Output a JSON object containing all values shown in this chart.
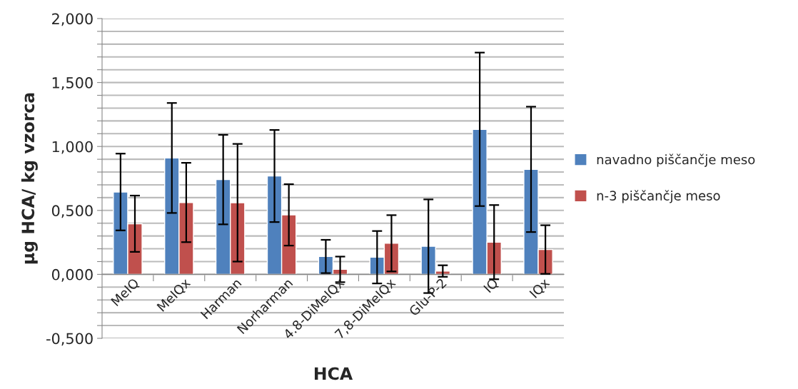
{
  "chart_data": {
    "type": "bar",
    "xlabel": "HCA",
    "ylabel": "µg HCA/ kg vzorca",
    "categories": [
      "MeIQ",
      "MeIQx",
      "Harman",
      "Norharman",
      "4.8-DiMeIQx",
      "7,8-DiMeIQx",
      "Glu-P-2",
      "IQ",
      "IQx"
    ],
    "series": [
      {
        "name": "navadno piščančje meso",
        "color": "#4f81bd",
        "values": [
          0.644,
          0.91,
          0.741,
          0.769,
          0.14,
          0.134,
          0.22,
          1.134,
          0.821
        ],
        "errors": [
          0.3,
          0.43,
          0.35,
          0.36,
          0.13,
          0.205,
          0.366,
          0.6,
          0.49
        ]
      },
      {
        "name": "n-3 piščančje meso",
        "color": "#c0504d",
        "values": [
          0.396,
          0.562,
          0.56,
          0.465,
          0.039,
          0.243,
          0.026,
          0.252,
          0.194
        ],
        "errors": [
          0.22,
          0.31,
          0.46,
          0.24,
          0.1,
          0.22,
          0.045,
          0.29,
          0.19
        ]
      }
    ],
    "ylim": [
      -0.5,
      2.0
    ],
    "yticks": [
      {
        "value": -0.5,
        "label": "-0,500"
      },
      {
        "value": -0.4,
        "label": null
      },
      {
        "value": -0.3,
        "label": null
      },
      {
        "value": -0.2,
        "label": null
      },
      {
        "value": -0.1,
        "label": null
      },
      {
        "value": 0.0,
        "label": "0,000"
      },
      {
        "value": 0.1,
        "label": null
      },
      {
        "value": 0.2,
        "label": null
      },
      {
        "value": 0.3,
        "label": null
      },
      {
        "value": 0.4,
        "label": null
      },
      {
        "value": 0.5,
        "label": "0,500"
      },
      {
        "value": 0.6,
        "label": null
      },
      {
        "value": 0.7,
        "label": null
      },
      {
        "value": 0.8,
        "label": null
      },
      {
        "value": 0.9,
        "label": null
      },
      {
        "value": 1.0,
        "label": "1,000"
      },
      {
        "value": 1.1,
        "label": null
      },
      {
        "value": 1.2,
        "label": null
      },
      {
        "value": 1.3,
        "label": null
      },
      {
        "value": 1.4,
        "label": null
      },
      {
        "value": 1.5,
        "label": "1,500"
      },
      {
        "value": 1.6,
        "label": null
      },
      {
        "value": 1.7,
        "label": null
      },
      {
        "value": 1.8,
        "label": null
      },
      {
        "value": 1.9,
        "label": null
      },
      {
        "value": 2.0,
        "label": "2,000"
      }
    ],
    "grid": "y",
    "legend": "right"
  }
}
